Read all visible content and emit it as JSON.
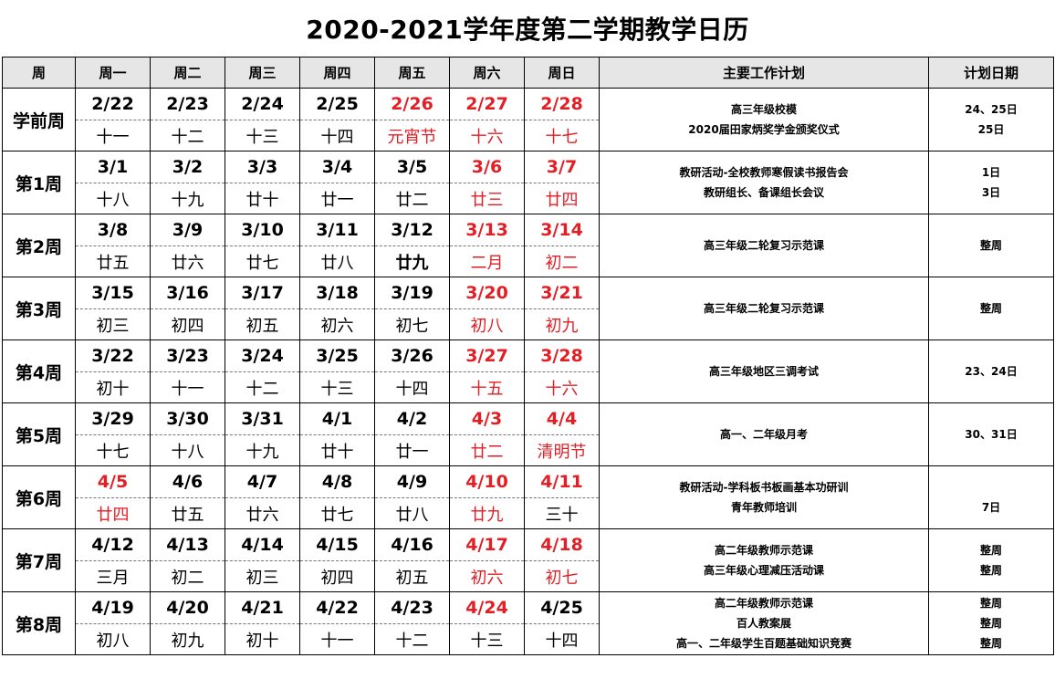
{
  "title": "2020-2021学年度第二学期教学日历",
  "headers": [
    "周",
    "周一",
    "周二",
    "周三",
    "周四",
    "周五",
    "周六",
    "周日",
    "主要工作计划",
    "计划日期"
  ],
  "weeks": [
    {
      "label": "学前周",
      "dates": [
        {
          "t": "2/22"
        },
        {
          "t": "2/23"
        },
        {
          "t": "2/24"
        },
        {
          "t": "2/25"
        },
        {
          "t": "2/26",
          "red": true
        },
        {
          "t": "2/27",
          "red": true
        },
        {
          "t": "2/28",
          "red": true
        }
      ],
      "lunar": [
        {
          "t": "十一"
        },
        {
          "t": "十二"
        },
        {
          "t": "十三"
        },
        {
          "t": "十四"
        },
        {
          "t": "元宵节",
          "red": true
        },
        {
          "t": "十六",
          "red": true
        },
        {
          "t": "十七",
          "red": true
        }
      ],
      "plans": [
        "高三年级校模",
        "2020届田家炳奖学金颁奖仪式"
      ],
      "plan_dates": [
        "24、25日",
        "25日"
      ]
    },
    {
      "label": "第1周",
      "dates": [
        {
          "t": "3/1"
        },
        {
          "t": "3/2"
        },
        {
          "t": "3/3"
        },
        {
          "t": "3/4"
        },
        {
          "t": "3/5"
        },
        {
          "t": "3/6",
          "red": true
        },
        {
          "t": "3/7",
          "red": true
        }
      ],
      "lunar": [
        {
          "t": "十八"
        },
        {
          "t": "十九"
        },
        {
          "t": "廿十"
        },
        {
          "t": "廿一"
        },
        {
          "t": "廿二"
        },
        {
          "t": "廿三",
          "red": true
        },
        {
          "t": "廿四",
          "red": true
        }
      ],
      "plans": [
        "教研活动-全校教师寒假读书报告会",
        "教研组长、备课组长会议"
      ],
      "plan_dates": [
        "1日",
        "3日"
      ]
    },
    {
      "label": "第2周",
      "dates": [
        {
          "t": "3/8"
        },
        {
          "t": "3/9"
        },
        {
          "t": "3/10"
        },
        {
          "t": "3/11"
        },
        {
          "t": "3/12"
        },
        {
          "t": "3/13",
          "red": true
        },
        {
          "t": "3/14",
          "red": true
        }
      ],
      "lunar": [
        {
          "t": "廿五"
        },
        {
          "t": "廿六"
        },
        {
          "t": "廿七"
        },
        {
          "t": "廿八"
        },
        {
          "t": "廿九",
          "bold": true
        },
        {
          "t": "二月",
          "red": true
        },
        {
          "t": "初二",
          "red": true
        }
      ],
      "plans": [
        "高三年级二轮复习示范课"
      ],
      "plan_dates": [
        "整周"
      ]
    },
    {
      "label": "第3周",
      "dates": [
        {
          "t": "3/15"
        },
        {
          "t": "3/16"
        },
        {
          "t": "3/17"
        },
        {
          "t": "3/18"
        },
        {
          "t": "3/19"
        },
        {
          "t": "3/20",
          "red": true
        },
        {
          "t": "3/21",
          "red": true
        }
      ],
      "lunar": [
        {
          "t": "初三"
        },
        {
          "t": "初四"
        },
        {
          "t": "初五"
        },
        {
          "t": "初六"
        },
        {
          "t": "初七"
        },
        {
          "t": "初八",
          "red": true
        },
        {
          "t": "初九",
          "red": true
        }
      ],
      "plans": [
        "高三年级二轮复习示范课"
      ],
      "plan_dates": [
        "整周"
      ]
    },
    {
      "label": "第4周",
      "dates": [
        {
          "t": "3/22"
        },
        {
          "t": "3/23"
        },
        {
          "t": "3/24"
        },
        {
          "t": "3/25"
        },
        {
          "t": "3/26"
        },
        {
          "t": "3/27",
          "red": true
        },
        {
          "t": "3/28",
          "red": true
        }
      ],
      "lunar": [
        {
          "t": "初十"
        },
        {
          "t": "十一"
        },
        {
          "t": "十二"
        },
        {
          "t": "十三"
        },
        {
          "t": "十四"
        },
        {
          "t": "十五",
          "red": true
        },
        {
          "t": "十六",
          "red": true
        }
      ],
      "plans": [
        "高三年级地区三调考试"
      ],
      "plan_dates": [
        "23、24日"
      ]
    },
    {
      "label": "第5周",
      "dates": [
        {
          "t": "3/29"
        },
        {
          "t": "3/30"
        },
        {
          "t": "3/31"
        },
        {
          "t": "4/1"
        },
        {
          "t": "4/2"
        },
        {
          "t": "4/3",
          "red": true
        },
        {
          "t": "4/4",
          "red": true
        }
      ],
      "lunar": [
        {
          "t": "十七"
        },
        {
          "t": "十八"
        },
        {
          "t": "十九"
        },
        {
          "t": "廿十"
        },
        {
          "t": "廿一"
        },
        {
          "t": "廿二",
          "red": true
        },
        {
          "t": "清明节",
          "red": true
        }
      ],
      "plans": [
        "高一、二年级月考"
      ],
      "plan_dates": [
        "30、31日"
      ]
    },
    {
      "label": "第6周",
      "dates": [
        {
          "t": "4/5",
          "red": true
        },
        {
          "t": "4/6"
        },
        {
          "t": "4/7"
        },
        {
          "t": "4/8"
        },
        {
          "t": "4/9"
        },
        {
          "t": "4/10",
          "red": true
        },
        {
          "t": "4/11",
          "red": true
        }
      ],
      "lunar": [
        {
          "t": "廿四",
          "red": true
        },
        {
          "t": "廿五"
        },
        {
          "t": "廿六"
        },
        {
          "t": "廿七"
        },
        {
          "t": "廿八"
        },
        {
          "t": "廿九",
          "red": true
        },
        {
          "t": "三十"
        }
      ],
      "plans": [
        "教研活动-学科板书板画基本功研训",
        "青年教师培训"
      ],
      "plan_dates": [
        "",
        "7日"
      ]
    },
    {
      "label": "第7周",
      "dates": [
        {
          "t": "4/12"
        },
        {
          "t": "4/13"
        },
        {
          "t": "4/14"
        },
        {
          "t": "4/15"
        },
        {
          "t": "4/16"
        },
        {
          "t": "4/17",
          "red": true
        },
        {
          "t": "4/18",
          "red": true
        }
      ],
      "lunar": [
        {
          "t": "三月"
        },
        {
          "t": "初二"
        },
        {
          "t": "初三"
        },
        {
          "t": "初四"
        },
        {
          "t": "初五"
        },
        {
          "t": "初六",
          "red": true
        },
        {
          "t": "初七",
          "red": true
        }
      ],
      "plans": [
        "高二年级教师示范课",
        "高三年级心理减压活动课"
      ],
      "plan_dates": [
        "整周",
        "整周"
      ]
    },
    {
      "label": "第8周",
      "dates": [
        {
          "t": "4/19"
        },
        {
          "t": "4/20"
        },
        {
          "t": "4/21"
        },
        {
          "t": "4/22"
        },
        {
          "t": "4/23"
        },
        {
          "t": "4/24",
          "red": true
        },
        {
          "t": "4/25"
        }
      ],
      "lunar": [
        {
          "t": "初八"
        },
        {
          "t": "初九"
        },
        {
          "t": "初十"
        },
        {
          "t": "十一"
        },
        {
          "t": "十二"
        },
        {
          "t": "十三"
        },
        {
          "t": "十四"
        }
      ],
      "plans": [
        "高二年级教师示范课",
        "百人教案展",
        "高一、二年级学生百题基础知识竞赛"
      ],
      "plan_dates": [
        "整周",
        "整周",
        "整周"
      ]
    }
  ],
  "colors": {
    "holiday_red": "#e31e24",
    "header_bg": "#e6e6e6"
  }
}
